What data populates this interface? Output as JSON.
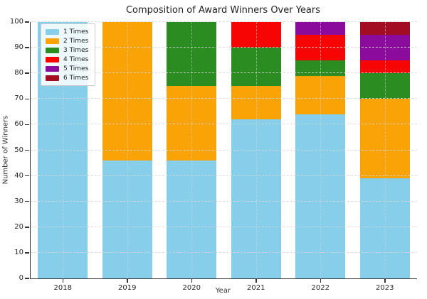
{
  "chart_data": {
    "type": "bar",
    "stacked": true,
    "title": "Composition of Award Winners Over Years",
    "xlabel": "Year",
    "ylabel": "Number of Winners",
    "categories": [
      "2018",
      "2019",
      "2020",
      "2021",
      "2022",
      "2023"
    ],
    "series": [
      {
        "name": "1 Times",
        "color": "#87CEEB",
        "values": [
          100,
          46,
          46,
          62,
          64,
          39
        ]
      },
      {
        "name": "2 Times",
        "color": "#FAA307",
        "values": [
          0,
          54,
          29,
          13,
          15,
          31
        ]
      },
      {
        "name": "3 Times",
        "color": "#2B8C21",
        "values": [
          0,
          0,
          25,
          15,
          6,
          10
        ]
      },
      {
        "name": "4 Times",
        "color": "#F70505",
        "values": [
          0,
          0,
          0,
          10,
          10,
          5
        ]
      },
      {
        "name": "5 Times",
        "color": "#8B0C9C",
        "values": [
          0,
          0,
          0,
          0,
          5,
          10
        ]
      },
      {
        "name": "6 Times",
        "color": "#A30D23",
        "values": [
          0,
          0,
          0,
          0,
          0,
          5
        ]
      }
    ],
    "ylim": [
      0,
      100
    ],
    "yticks": [
      0,
      10,
      20,
      30,
      40,
      50,
      60,
      70,
      80,
      90,
      100
    ],
    "grid": true,
    "legend_position": "upper left"
  }
}
